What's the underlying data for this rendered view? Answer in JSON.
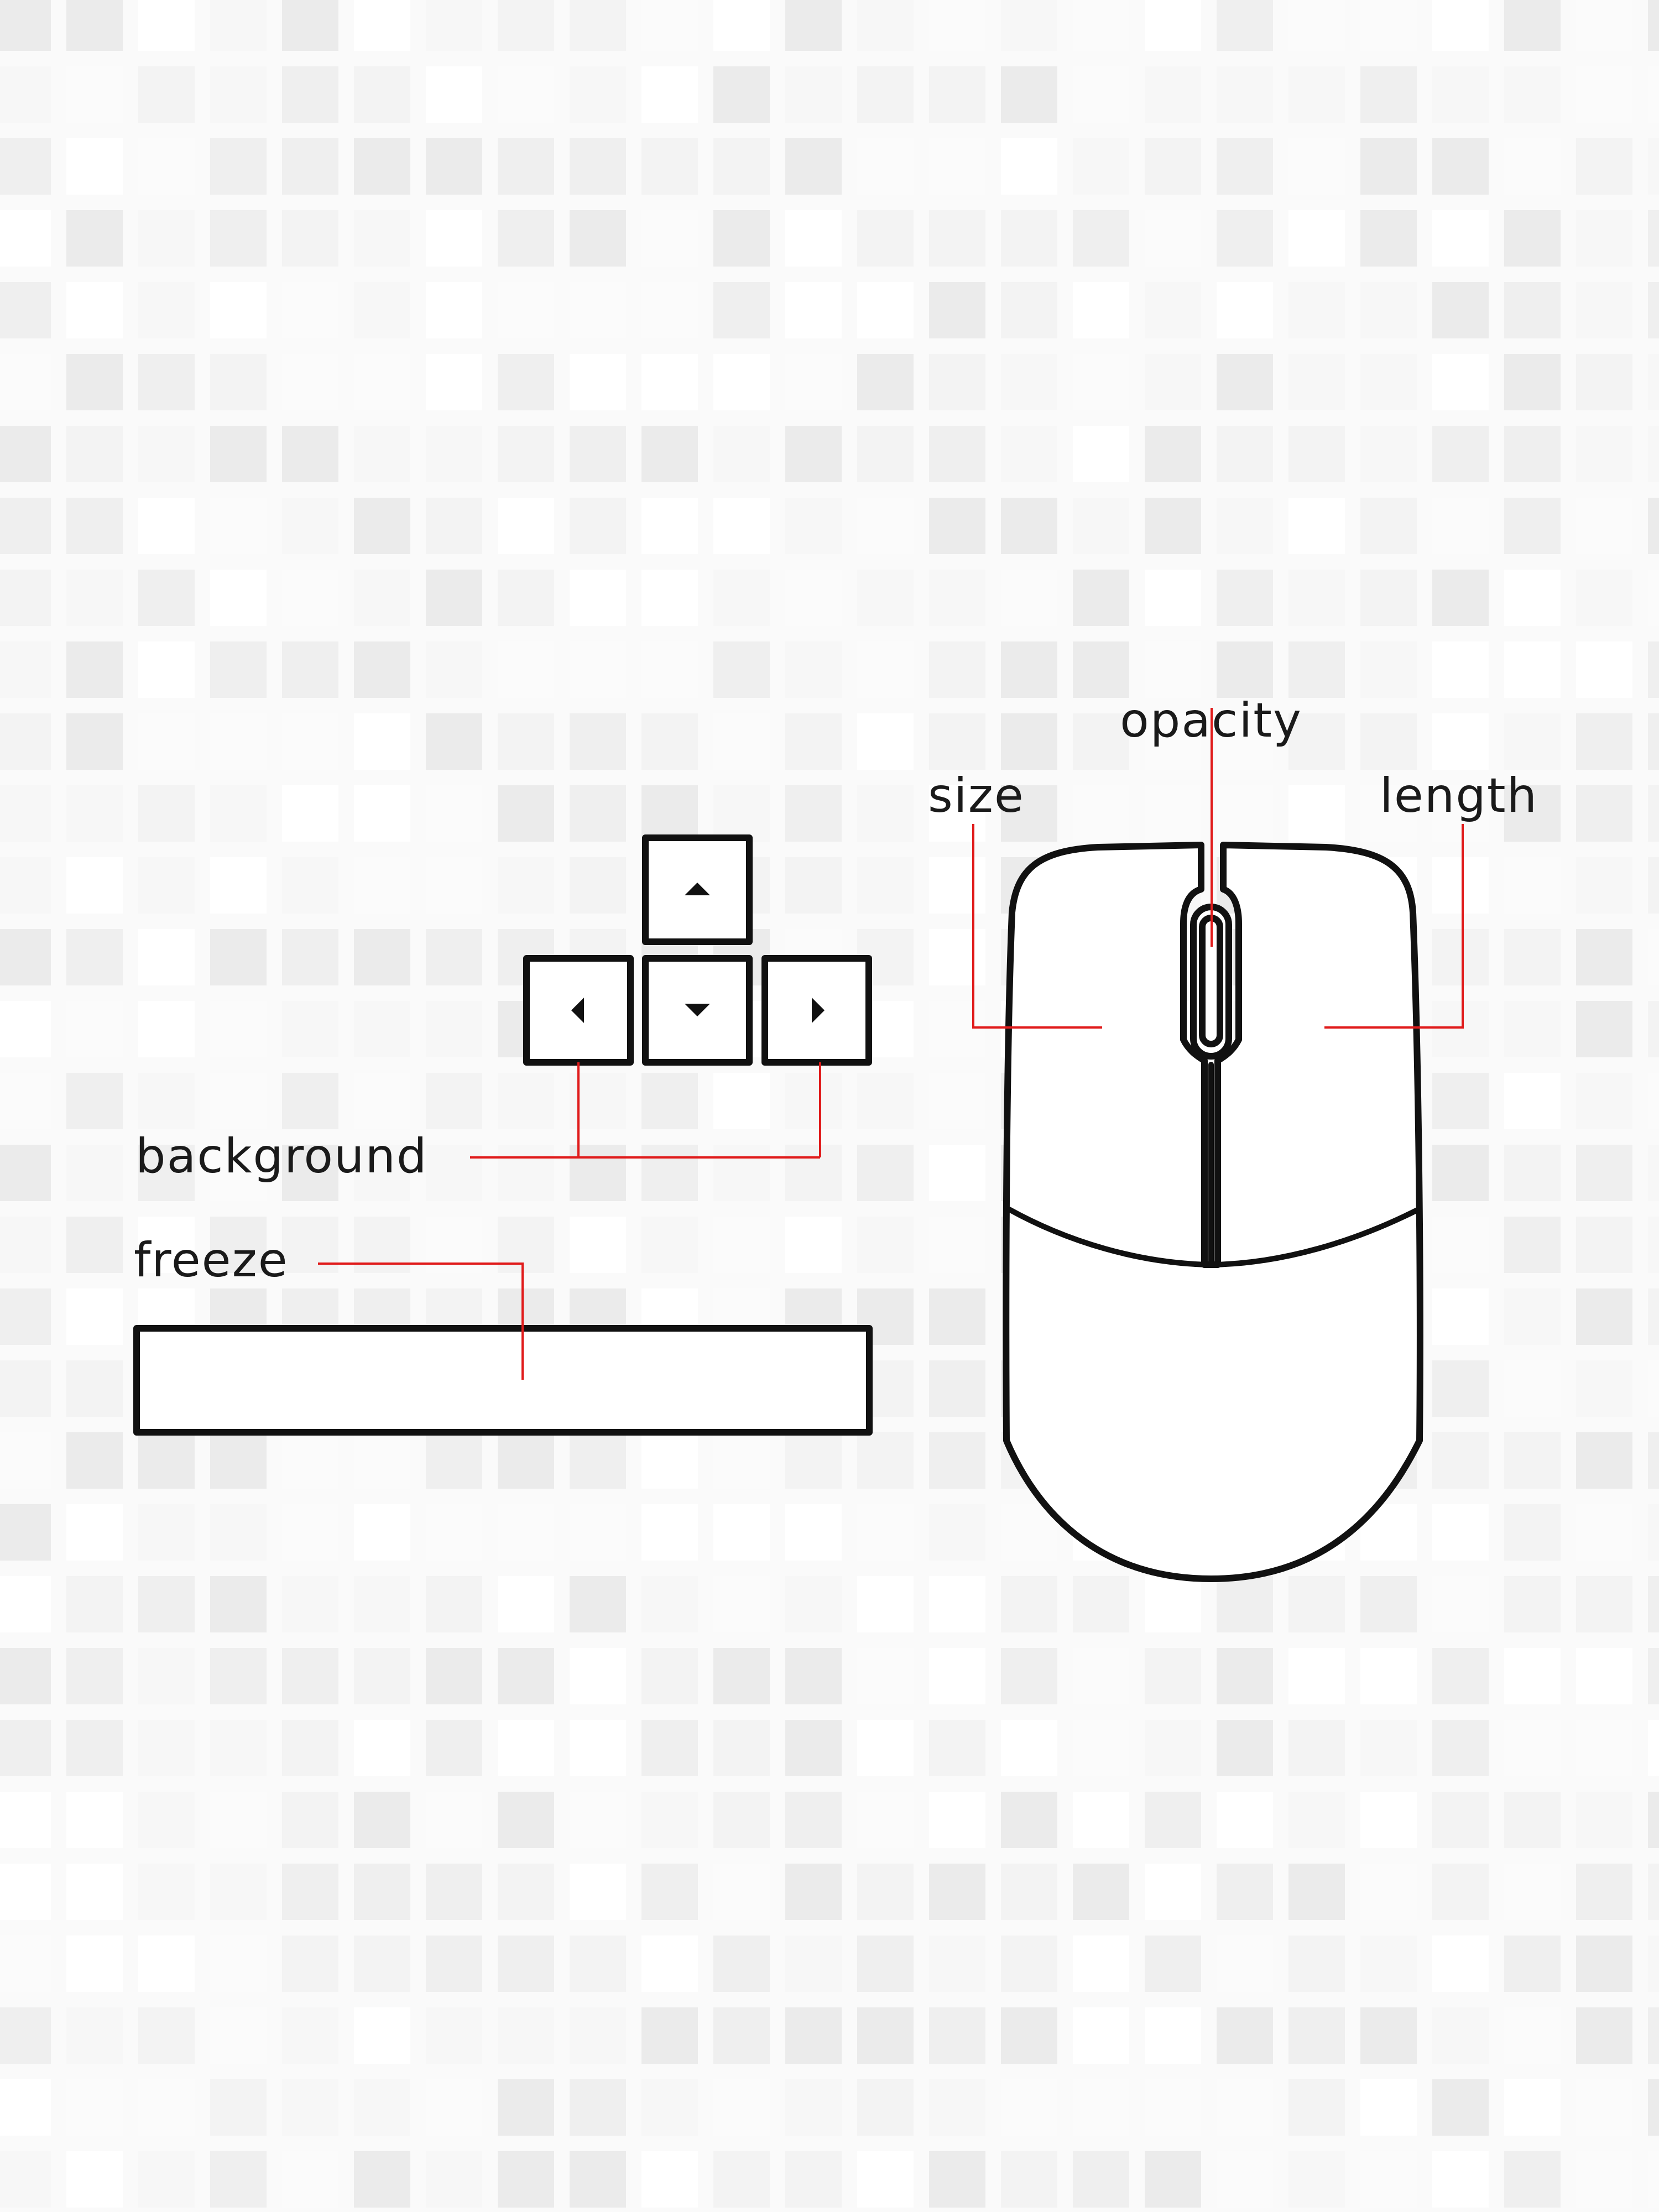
{
  "labels": {
    "opacity": "opacity",
    "size": "size",
    "length": "length",
    "background": "background",
    "freeze": "freeze"
  },
  "keys": {
    "up": "up-arrow-key",
    "left": "left-arrow-key",
    "down": "down-arrow-key",
    "right": "right-arrow-key",
    "space": "spacebar"
  },
  "colors": {
    "leader": "#e01a1a",
    "outline": "#111111",
    "tile_shades": [
      "#ffffff",
      "#fbfbfb",
      "#f7f7f7",
      "#f3f3f3",
      "#efefef",
      "#ebebeb"
    ]
  }
}
